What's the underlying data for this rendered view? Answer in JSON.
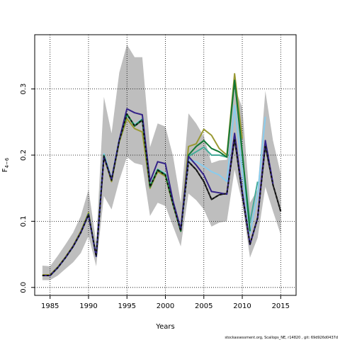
{
  "chart_data": {
    "type": "line",
    "xlabel": "Years",
    "ylabel": "F",
    "ylabel_sub": "4−6",
    "xlim": [
      1983,
      2017
    ],
    "ylim": [
      -0.012,
      0.382
    ],
    "x_ticks": [
      1985,
      1990,
      1995,
      2000,
      2005,
      2010,
      2015
    ],
    "y_ticks": [
      0.0,
      0.1,
      0.2,
      0.3
    ],
    "y_tick_labels": [
      "0.0",
      "0.1",
      "0.2",
      "0.3"
    ],
    "grid": true,
    "credit": "stockassessment.org, Scallops_NE, r14820 , git: 69d926d0437d",
    "confidence_band": {
      "color": "#bebebe",
      "years": [
        1984,
        1985,
        1986,
        1987,
        1988,
        1989,
        1990,
        1991,
        1992,
        1993,
        1994,
        1995,
        1996,
        1997,
        1998,
        1999,
        2000,
        2001,
        2002,
        2003,
        2004,
        2005,
        2006,
        2007,
        2008,
        2009,
        2010,
        2011,
        2012,
        2013,
        2014,
        2015
      ],
      "upper": [
        0.033,
        0.032,
        0.048,
        0.065,
        0.083,
        0.108,
        0.148,
        0.068,
        0.288,
        0.233,
        0.325,
        0.367,
        0.348,
        0.348,
        0.212,
        0.248,
        0.243,
        0.198,
        0.128,
        0.263,
        0.248,
        0.228,
        0.188,
        0.192,
        0.193,
        0.303,
        0.272,
        0.128,
        0.148,
        0.297,
        0.222,
        0.172
      ],
      "lower": [
        0.011,
        0.011,
        0.018,
        0.028,
        0.038,
        0.052,
        0.078,
        0.032,
        0.138,
        0.118,
        0.162,
        0.197,
        0.188,
        0.185,
        0.108,
        0.128,
        0.123,
        0.092,
        0.062,
        0.142,
        0.132,
        0.118,
        0.092,
        0.098,
        0.1,
        0.178,
        0.128,
        0.045,
        0.075,
        0.152,
        0.115,
        0.08
      ]
    },
    "series": [
      {
        "color": "#222222",
        "dashed": false,
        "values": [
          0.018,
          0.018,
          0.03,
          0.045,
          0.062,
          0.083,
          0.11,
          0.047,
          0.198,
          0.162,
          0.222,
          0.262,
          0.244,
          0.253,
          0.152,
          0.177,
          0.17,
          0.125,
          0.085,
          0.19,
          0.178,
          0.16,
          0.133,
          0.14,
          0.142,
          0.225,
          0.142,
          0.065,
          0.105,
          0.215,
          0.155,
          0.115
        ]
      },
      {
        "color": "#88ccee",
        "dashed": false,
        "values": [
          0.018,
          0.018,
          0.03,
          0.045,
          0.062,
          0.083,
          0.11,
          0.047,
          0.202,
          0.164,
          0.224,
          0.26,
          0.246,
          0.255,
          0.153,
          0.179,
          0.172,
          0.127,
          0.086,
          0.193,
          0.19,
          0.183,
          0.175,
          0.17,
          0.16,
          0.275,
          0.175,
          0.082,
          0.14,
          0.258
        ]
      },
      {
        "color": "#44aa99",
        "dashed": false,
        "values": [
          0.018,
          0.018,
          0.03,
          0.045,
          0.062,
          0.083,
          0.111,
          0.047,
          0.2,
          0.163,
          0.223,
          0.261,
          0.245,
          0.254,
          0.152,
          0.178,
          0.171,
          0.126,
          0.086,
          0.198,
          0.205,
          0.212,
          0.2,
          0.2,
          0.197,
          0.318,
          0.2,
          0.098,
          0.16
        ]
      },
      {
        "color": "#999933",
        "dashed": false,
        "values": [
          0.019,
          0.019,
          0.031,
          0.046,
          0.063,
          0.085,
          0.113,
          0.047,
          0.197,
          0.16,
          0.22,
          0.255,
          0.24,
          0.235,
          0.15,
          0.175,
          0.168,
          0.124,
          0.085,
          0.213,
          0.217,
          0.239,
          0.23,
          0.21,
          0.2,
          0.323,
          0.225
        ]
      },
      {
        "color": "#117733",
        "dashed": false,
        "values": [
          0.018,
          0.018,
          0.03,
          0.045,
          0.062,
          0.083,
          0.111,
          0.047,
          0.199,
          0.162,
          0.222,
          0.262,
          0.244,
          0.254,
          0.152,
          0.178,
          0.17,
          0.126,
          0.085,
          0.2,
          0.213,
          0.222,
          0.21,
          0.205,
          0.197,
          0.313,
          0.205,
          0.085
        ]
      },
      {
        "color": "#332288",
        "dashed": false,
        "values": [
          0.018,
          0.018,
          0.03,
          0.045,
          0.062,
          0.083,
          0.11,
          0.047,
          0.198,
          0.163,
          0.223,
          0.27,
          0.264,
          0.261,
          0.16,
          0.19,
          0.187,
          0.13,
          0.088,
          0.198,
          0.185,
          0.17,
          0.145,
          0.143,
          0.141,
          0.233,
          0.145,
          0.065,
          0.105,
          0.222,
          0.157
        ]
      },
      {
        "color": "#111111",
        "dashed": true,
        "values": [
          0.018,
          0.018,
          0.03,
          0.045,
          0.062,
          0.083,
          0.11,
          0.047,
          0.198,
          0.162,
          0.222,
          0.262,
          0.244,
          0.253,
          0.152,
          0.177,
          0.17,
          0.125,
          0.085,
          0.19,
          0.178,
          0.16,
          0.133,
          0.14,
          0.142,
          0.225,
          0.142,
          0.065,
          0.105,
          0.215,
          0.155,
          0.115
        ]
      }
    ]
  }
}
